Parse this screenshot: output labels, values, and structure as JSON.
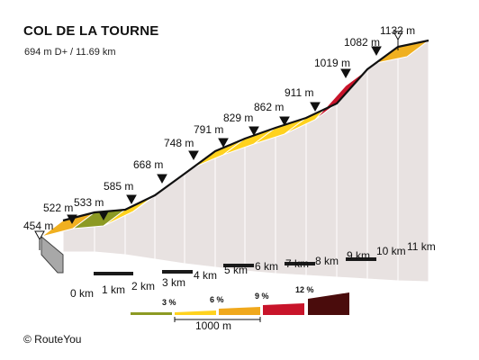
{
  "header": {
    "title": "COL DE LA TOURNE",
    "subtitle": "694 m D+ / 11.69 km"
  },
  "profile": {
    "elevation_labels": [
      "454 m",
      "522 m",
      "533 m",
      "585 m",
      "668 m",
      "748 m",
      "791 m",
      "829 m",
      "862 m",
      "911 m",
      "1019 m",
      "1082 m",
      "1132 m"
    ],
    "distance_labels": [
      "0 km",
      "1 km",
      "2 km",
      "3 km",
      "4 km",
      "5 km",
      "6 km",
      "7 km",
      "8 km",
      "9 km",
      "10 km",
      "11 km"
    ],
    "segment_colors": [
      "#f0b020",
      "#8c9a23",
      "#ffd21e",
      "#f0a81c",
      "#ffd21e",
      "#ffd21e",
      "#ffd21e",
      "#ffd21e",
      "#ffd21e",
      "#c8142a",
      "#f0a81c",
      "#f0b020"
    ]
  },
  "legend": {
    "labels": [
      "3 %",
      "6 %",
      "9 %",
      "12 %"
    ],
    "colors": [
      "#8c9a23",
      "#ffd21e",
      "#f0a81c",
      "#c8142a",
      "#4a0c0c"
    ],
    "scale_label": "1000 m"
  },
  "footer": {
    "credit": "© RouteYou"
  }
}
